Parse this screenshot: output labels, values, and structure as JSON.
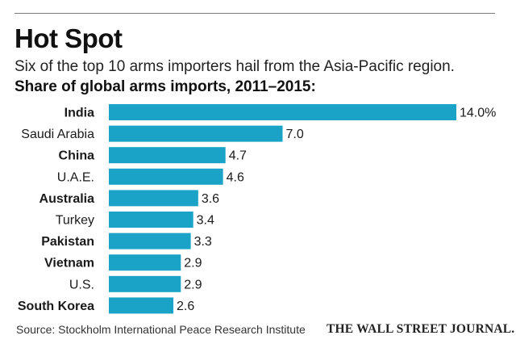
{
  "header": {
    "title": "Hot Spot",
    "subtitle": "Six of the top 10 arms importers hail from the Asia-Pacific region.",
    "chart_label": "Share of global arms imports, 2011–2015:"
  },
  "footer": {
    "source": "Source: Stockholm International Peace Research Institute",
    "credit": "THE WALL STREET JOURNAL."
  },
  "colors": {
    "bar": "#1aa3c6",
    "text": "#1a1a1a",
    "rule": "#7a7a7a"
  },
  "chart_data": {
    "type": "bar",
    "orientation": "horizontal",
    "title": "Share of global arms imports, 2011–2015:",
    "categories": [
      "India",
      "Saudi Arabia",
      "China",
      "U.A.E.",
      "Australia",
      "Turkey",
      "Pakistan",
      "Vietnam",
      "U.S.",
      "South Korea"
    ],
    "values": [
      14.0,
      7.0,
      4.7,
      4.6,
      3.6,
      3.4,
      3.3,
      2.9,
      2.9,
      2.6
    ],
    "value_labels": [
      "14.0%",
      "7.0",
      "4.7",
      "4.6",
      "3.6",
      "3.4",
      "3.3",
      "2.9",
      "2.9",
      "2.6"
    ],
    "bold_categories": [
      "India",
      "China",
      "Australia",
      "Pakistan",
      "Vietnam",
      "South Korea"
    ],
    "unit": "%",
    "xlim": [
      0,
      14.0
    ],
    "grid": false,
    "legend": "none"
  }
}
